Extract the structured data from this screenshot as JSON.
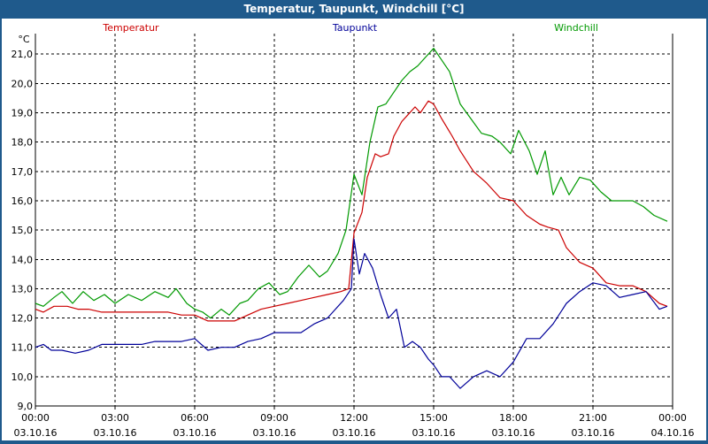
{
  "window": {
    "title": "Temperatur, Taupunkt, Windchill [°C]"
  },
  "chart_data": {
    "type": "line",
    "title": "Temperatur, Taupunkt, Windchill [°C]",
    "ylabel": "°C",
    "ylim": [
      9.0,
      21.7
    ],
    "yticks": [
      9.0,
      10.0,
      11.0,
      12.0,
      13.0,
      14.0,
      15.0,
      16.0,
      17.0,
      18.0,
      19.0,
      20.0,
      21.0
    ],
    "ytick_labels": [
      "9,0",
      "10,0",
      "11,0",
      "12,0",
      "13,0",
      "14,0",
      "15,0",
      "16,0",
      "17,0",
      "18,0",
      "19,0",
      "20,0",
      "21,0"
    ],
    "xlim": [
      0,
      24
    ],
    "xticks": [
      0,
      3,
      6,
      9,
      12,
      15,
      18,
      21,
      24
    ],
    "xtick_times": [
      "00:00",
      "03:00",
      "06:00",
      "09:00",
      "12:00",
      "15:00",
      "18:00",
      "21:00",
      "00:00"
    ],
    "xtick_dates": [
      "03.10.16",
      "03.10.16",
      "03.10.16",
      "03.10.16",
      "03.10.16",
      "03.10.16",
      "03.10.16",
      "03.10.16",
      "04.10.16"
    ],
    "grid": true,
    "series": [
      {
        "name": "Temperatur",
        "color": "#cc0000",
        "legend_pos": "left",
        "x": [
          0,
          0.3,
          0.7,
          1.2,
          1.6,
          2.0,
          2.5,
          3.0,
          4.0,
          4.5,
          5.0,
          5.5,
          6.0,
          6.5,
          7.0,
          7.5,
          8.0,
          8.5,
          9.0,
          9.5,
          10.0,
          10.5,
          11.0,
          11.5,
          11.8,
          12.0,
          12.3,
          12.5,
          12.8,
          13.0,
          13.3,
          13.5,
          13.8,
          14.0,
          14.3,
          14.5,
          14.8,
          15.0,
          15.3,
          15.7,
          16.0,
          16.5,
          17.0,
          17.5,
          18.0,
          18.5,
          19.0,
          19.3,
          19.7,
          20.0,
          20.5,
          21.0,
          21.5,
          22.0,
          22.5,
          23.0,
          23.5,
          23.8
        ],
        "values": [
          12.3,
          12.2,
          12.4,
          12.4,
          12.3,
          12.3,
          12.2,
          12.2,
          12.2,
          12.2,
          12.2,
          12.1,
          12.1,
          11.9,
          11.9,
          11.9,
          12.1,
          12.3,
          12.4,
          12.5,
          12.6,
          12.7,
          12.8,
          12.9,
          13.0,
          14.9,
          15.6,
          16.8,
          17.6,
          17.5,
          17.6,
          18.2,
          18.7,
          18.9,
          19.2,
          19.0,
          19.4,
          19.3,
          18.8,
          18.2,
          17.7,
          17.0,
          16.6,
          16.1,
          16.0,
          15.5,
          15.2,
          15.1,
          15.0,
          14.4,
          13.9,
          13.7,
          13.2,
          13.1,
          13.1,
          12.9,
          12.5,
          12.4
        ]
      },
      {
        "name": "Taupunkt",
        "color": "#000099",
        "legend_pos": "center",
        "x": [
          0,
          0.3,
          0.6,
          1.0,
          1.5,
          2.0,
          2.5,
          3.0,
          4.0,
          4.5,
          5.0,
          5.5,
          6.0,
          6.5,
          7.0,
          7.5,
          8.0,
          8.5,
          9.0,
          9.5,
          10.0,
          10.5,
          11.0,
          11.3,
          11.6,
          11.9,
          12.0,
          12.2,
          12.4,
          12.7,
          13.0,
          13.3,
          13.6,
          13.9,
          14.2,
          14.5,
          14.8,
          15.0,
          15.3,
          15.6,
          16.0,
          16.5,
          17.0,
          17.5,
          18.0,
          18.5,
          19.0,
          19.5,
          20.0,
          20.5,
          21.0,
          21.5,
          22.0,
          22.5,
          23.0,
          23.5,
          23.8
        ],
        "values": [
          11.0,
          11.1,
          10.9,
          10.9,
          10.8,
          10.9,
          11.1,
          11.1,
          11.1,
          11.2,
          11.2,
          11.2,
          11.3,
          10.9,
          11.0,
          11.0,
          11.2,
          11.3,
          11.5,
          11.5,
          11.5,
          11.8,
          12.0,
          12.3,
          12.6,
          13.0,
          14.7,
          13.5,
          14.2,
          13.7,
          12.8,
          12.0,
          12.3,
          11.0,
          11.2,
          11.0,
          10.6,
          10.4,
          10.0,
          10.0,
          9.6,
          10.0,
          10.2,
          10.0,
          10.5,
          11.3,
          11.3,
          11.8,
          12.5,
          12.9,
          13.2,
          13.1,
          12.7,
          12.8,
          12.9,
          12.3,
          12.4
        ]
      },
      {
        "name": "Windchill",
        "color": "#009900",
        "legend_pos": "right",
        "x": [
          0,
          0.3,
          0.7,
          1.0,
          1.4,
          1.8,
          2.2,
          2.6,
          3.0,
          3.5,
          4.0,
          4.5,
          5.0,
          5.3,
          5.7,
          6.0,
          6.3,
          6.6,
          7.0,
          7.3,
          7.7,
          8.0,
          8.4,
          8.8,
          9.2,
          9.5,
          9.9,
          10.3,
          10.7,
          11.0,
          11.4,
          11.7,
          12.0,
          12.3,
          12.6,
          12.9,
          13.2,
          13.5,
          13.8,
          14.1,
          14.4,
          14.7,
          15.0,
          15.3,
          15.6,
          16.0,
          16.4,
          16.8,
          17.2,
          17.5,
          17.9,
          18.2,
          18.6,
          18.9,
          19.2,
          19.5,
          19.8,
          20.1,
          20.5,
          20.9,
          21.3,
          21.7,
          22.1,
          22.5,
          22.9,
          23.3,
          23.8
        ],
        "values": [
          12.5,
          12.4,
          12.7,
          12.9,
          12.5,
          12.9,
          12.6,
          12.8,
          12.5,
          12.8,
          12.6,
          12.9,
          12.7,
          13.0,
          12.5,
          12.3,
          12.2,
          12.0,
          12.3,
          12.1,
          12.5,
          12.6,
          13.0,
          13.2,
          12.8,
          12.9,
          13.4,
          13.8,
          13.4,
          13.6,
          14.2,
          15.0,
          16.9,
          16.2,
          18.0,
          19.2,
          19.3,
          19.7,
          20.1,
          20.4,
          20.6,
          20.9,
          21.2,
          20.8,
          20.4,
          19.3,
          18.8,
          18.3,
          18.2,
          18.0,
          17.6,
          18.4,
          17.7,
          16.9,
          17.7,
          16.2,
          16.8,
          16.2,
          16.8,
          16.7,
          16.3,
          16.0,
          16.0,
          16.0,
          15.8,
          15.5,
          15.3
        ]
      }
    ]
  }
}
